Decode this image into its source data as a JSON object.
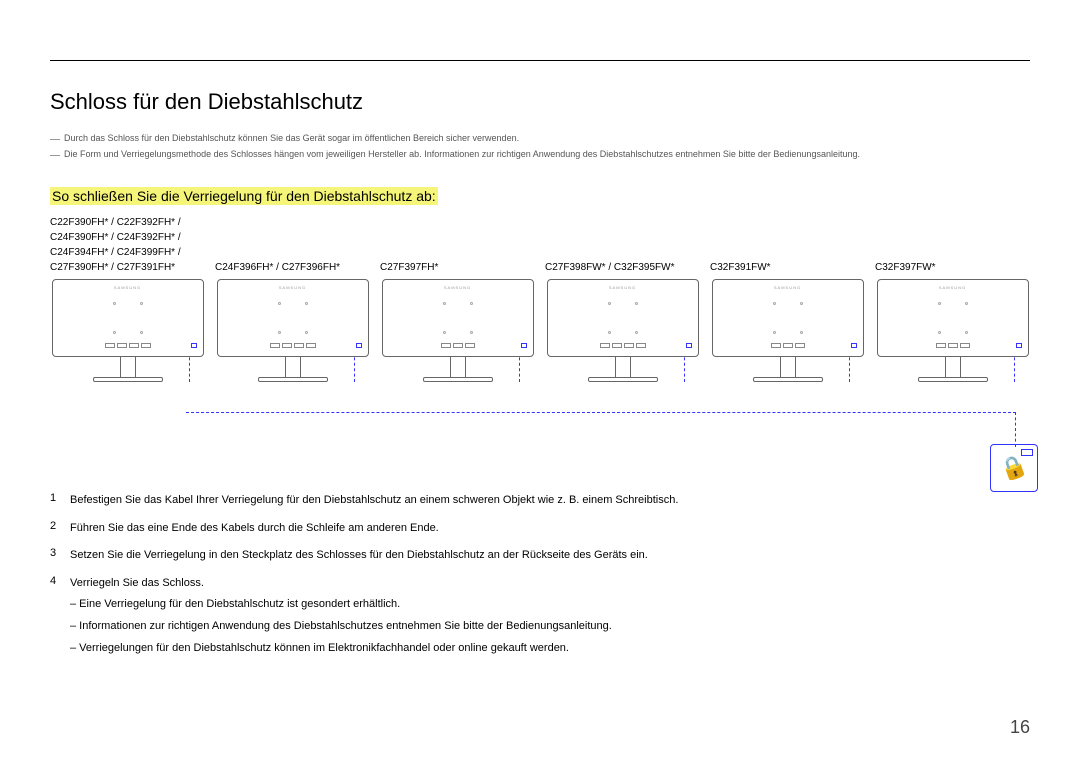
{
  "title": "Schloss für den Diebstahlschutz",
  "notes": [
    "Durch das Schloss für den Diebstahlschutz können Sie das Gerät sogar im öffentlichen Bereich sicher verwenden.",
    "Die Form und Verriegelungsmethode des Schlosses hängen vom jeweiligen Hersteller ab. Informationen zur richtigen Anwendung des Diebstahlschutzes entnehmen Sie bitte der Bedienungsanleitung."
  ],
  "subtitle": "So schließen Sie die Verriegelung für den Diebstahlschutz ab:",
  "model_columns": [
    "C22F390FH* / C22F392FH* / C24F390FH* / C24F392FH* / C24F394FH* / C24F399FH* / C27F390FH* / C27F391FH*",
    "C24F396FH* / C27F396FH*",
    "C27F397FH*",
    "C27F398FW* / C32F395FW*",
    "C32F391FW*",
    "C32F397FW*"
  ],
  "monitor_brand": "SAMSUNG",
  "steps": [
    {
      "num": "1",
      "text": "Befestigen Sie das Kabel Ihrer Verriegelung für den Diebstahlschutz an einem schweren Objekt wie z. B. einem Schreibtisch.",
      "subs": []
    },
    {
      "num": "2",
      "text": "Führen Sie das eine Ende des Kabels durch die Schleife am anderen Ende.",
      "subs": []
    },
    {
      "num": "3",
      "text": "Setzen Sie die Verriegelung in den Steckplatz des Schlosses für den Diebstahlschutz an der Rückseite des Geräts ein.",
      "subs": []
    },
    {
      "num": "4",
      "text": "Verriegeln Sie das Schloss.",
      "subs": [
        "‒ Eine Verriegelung für den Diebstahlschutz ist gesondert erhältlich.",
        "‒ Informationen zur richtigen Anwendung des Diebstahlschutzes entnehmen Sie bitte der Bedienungsanleitung.",
        "‒ Verriegelungen für den Diebstahlschutz können im Elektronikfachhandel oder online gekauft werden."
      ]
    }
  ],
  "page_number": "16",
  "colors": {
    "highlight_bg": "#f5f57a",
    "dash": "#3333ff",
    "text": "#000000"
  }
}
